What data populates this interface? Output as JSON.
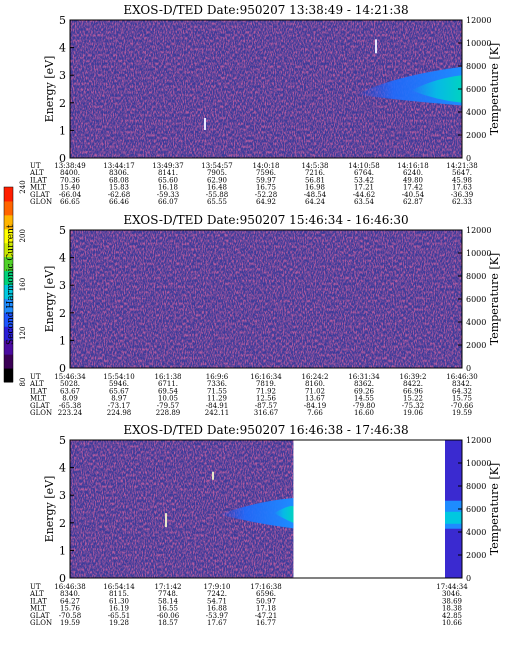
{
  "chart_data": [
    {
      "type": "heatmap",
      "title": "EXOS-D/TED   Date:950207   13:38:49 - 14:21:38",
      "ylabel": "Energy [eV]",
      "ylabel_right": "Temperature [K]",
      "ylim": [
        0,
        5
      ],
      "ylim_right": [
        0,
        12000
      ],
      "yticks": [
        "0",
        "1",
        "2",
        "3",
        "4",
        "5"
      ],
      "yticks_right": [
        "0",
        "2000",
        "4000",
        "6000",
        "8000",
        "10000",
        "12000"
      ],
      "data_end_fraction": 1.0,
      "feature": {
        "center_energy_ev": 2.6,
        "start_fraction": 0.73,
        "description_from_color": "enhanced emission band"
      },
      "table": {
        "row_labels": [
          "UT",
          "ALT",
          "ILAT",
          "MLT",
          "GLAT",
          "GLON"
        ],
        "columns": [
          [
            "13:38:49",
            "8400.",
            "70.36",
            "15.40",
            "-66.04",
            "66.65"
          ],
          [
            "13:44:17",
            "8306.",
            "68.08",
            "15.83",
            "-62.68",
            "66.46"
          ],
          [
            "13:49:37",
            "8141.",
            "65.60",
            "16.18",
            "-59.33",
            "66.07"
          ],
          [
            "13:54:57",
            "7905.",
            "62.90",
            "16.48",
            "-55.88",
            "65.55"
          ],
          [
            "14:0:18",
            "7596.",
            "59.97",
            "16.75",
            "-52.28",
            "64.92"
          ],
          [
            "14:5:38",
            "7216.",
            "56.81",
            "16.98",
            "-48.54",
            "64.24"
          ],
          [
            "14:10:58",
            "6764.",
            "53.42",
            "17.21",
            "-44.62",
            "63.54"
          ],
          [
            "14:16:18",
            "6240.",
            "49.80",
            "17.42",
            "-40.54",
            "62.87"
          ],
          [
            "14:21:38",
            "5647.",
            "45.98",
            "17.63",
            "-36.39",
            "62.33"
          ]
        ]
      }
    },
    {
      "type": "heatmap",
      "title": "EXOS-D/TED   Date:950207   15:46:34 - 16:46:30",
      "ylabel": "Energy [eV]",
      "ylabel_right": "Temperature [K]",
      "ylim": [
        0,
        5
      ],
      "ylim_right": [
        0,
        12000
      ],
      "yticks": [
        "0",
        "1",
        "2",
        "3",
        "4",
        "5"
      ],
      "yticks_right": [
        "0",
        "2000",
        "4000",
        "6000",
        "8000",
        "10000",
        "12000"
      ],
      "data_end_fraction": 1.0,
      "table": {
        "row_labels": [
          "UT",
          "ALT",
          "ILAT",
          "MLT",
          "GLAT",
          "GLON"
        ],
        "columns": [
          [
            "15:46:34",
            "5028.",
            "63.67",
            "8.09",
            "-65.38",
            "223.24"
          ],
          [
            "15:54:10",
            "5946.",
            "65.67",
            "8.97",
            "-73.17",
            "224.98"
          ],
          [
            "16:1:38",
            "6711.",
            "69.54",
            "10.05",
            "-79.57",
            "228.89"
          ],
          [
            "16:9:6",
            "7336.",
            "71.55",
            "11.29",
            "-84.91",
            "242.11"
          ],
          [
            "16:16:34",
            "7819.",
            "71.92",
            "12.56",
            "-87.57",
            "316.67"
          ],
          [
            "16:24:2",
            "8160.",
            "71.02",
            "13.67",
            "-84.19",
            "7.66"
          ],
          [
            "16:31:34",
            "8362.",
            "69.26",
            "14.55",
            "-79.80",
            "16.60"
          ],
          [
            "16:39:2",
            "8422.",
            "66.96",
            "15.22",
            "-75.32",
            "19.06"
          ],
          [
            "16:46:30",
            "8342.",
            "64.32",
            "15.75",
            "-70.66",
            "19.59"
          ]
        ]
      }
    },
    {
      "type": "heatmap",
      "title": "EXOS-D/TED   Date:950207   16:46:38 - 17:46:38",
      "ylabel": "Energy [eV]",
      "ylabel_right": "Temperature [K]",
      "ylim": [
        0,
        5
      ],
      "ylim_right": [
        0,
        12000
      ],
      "yticks": [
        "0",
        "1",
        "2",
        "3",
        "4",
        "5"
      ],
      "yticks_right": [
        "0",
        "2000",
        "4000",
        "6000",
        "8000",
        "10000",
        "12000"
      ],
      "data_end_fraction": 0.57,
      "table": {
        "row_labels": [
          "UT",
          "ALT",
          "ILAT",
          "MLT",
          "GLAT",
          "GLON"
        ],
        "columns": [
          [
            "16:46:38",
            "8340.",
            "64.27",
            "15.76",
            "-70.58",
            "19.59"
          ],
          [
            "16:54:14",
            "8115.",
            "61.30",
            "16.19",
            "-65.51",
            "19.28"
          ],
          [
            "17:1:42",
            "7748.",
            "58.14",
            "16.55",
            "-60.06",
            "18.57"
          ],
          [
            "17:9:10",
            "7242.",
            "54.71",
            "16.88",
            "-53.97",
            "17.67"
          ],
          [
            "17:16:38",
            "6596.",
            "50.97",
            "17.18",
            "-47.21",
            "16.77"
          ]
        ],
        "last_column": [
          "17:44:34",
          "3046.",
          "38.69",
          "18.38",
          "42.85",
          "10.66"
        ]
      }
    }
  ],
  "colorbar": {
    "label": "Second Harmonic Current",
    "ticks": [
      "80",
      "120",
      "160",
      "200",
      "240"
    ],
    "colors": [
      "#000000",
      "#3a0055",
      "#4a0aa0",
      "#2a1ed8",
      "#1e55ff",
      "#1e8cff",
      "#00c8e0",
      "#00d27a",
      "#50d228",
      "#c8e600",
      "#ffff00",
      "#ffb400",
      "#ff6400",
      "#ff1e00"
    ]
  }
}
